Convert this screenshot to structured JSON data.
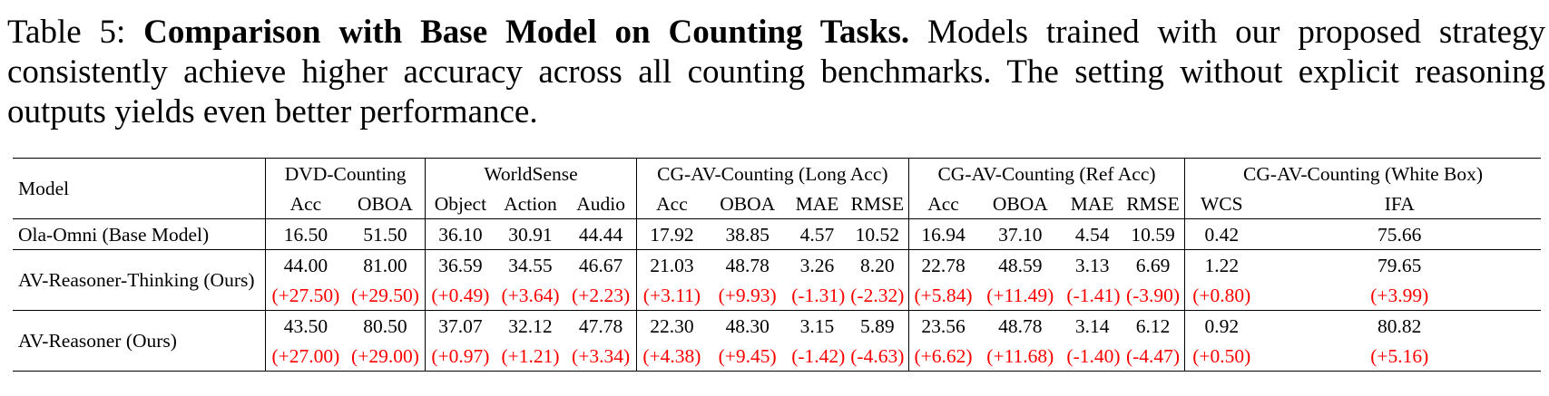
{
  "caption": {
    "prefix": "Table 5: ",
    "bold_title": "Comparison with Base Model on Counting Tasks.",
    "body": " Models trained with our proposed strategy consistently achieve higher accuracy across all counting benchmarks. The setting without explicit reasoning outputs yields even better performance."
  },
  "table": {
    "model_header": "Model",
    "groups": [
      "DVD-Counting",
      "WorldSense",
      "CG-AV-Counting (Long Acc)",
      "CG-AV-Counting (Ref Acc)",
      "CG-AV-Counting (White Box)"
    ],
    "subheaders": [
      "Acc",
      "OBOA",
      "Object",
      "Action",
      "Audio",
      "Acc",
      "OBOA",
      "MAE",
      "RMSE",
      "Acc",
      "OBOA",
      "MAE",
      "RMSE",
      "WCS",
      "IFA"
    ],
    "rows": [
      {
        "model": "Ola-Omni (Base Model)",
        "values": [
          "16.50",
          "51.50",
          "36.10",
          "30.91",
          "44.44",
          "17.92",
          "38.85",
          "4.57",
          "10.52",
          "16.94",
          "37.10",
          "4.54",
          "10.59",
          "0.42",
          "75.66"
        ]
      },
      {
        "model": "AV-Reasoner-Thinking (Ours)",
        "values": [
          "44.00",
          "81.00",
          "36.59",
          "34.55",
          "46.67",
          "21.03",
          "48.78",
          "3.26",
          "8.20",
          "22.78",
          "48.59",
          "3.13",
          "6.69",
          "1.22",
          "79.65"
        ],
        "deltas": [
          "(+27.50)",
          "(+29.50)",
          "(+0.49)",
          "(+3.64)",
          "(+2.23)",
          "(+3.11)",
          "(+9.93)",
          "(-1.31)",
          "(-2.32)",
          "(+5.84)",
          "(+11.49)",
          "(-1.41)",
          "(-3.90)",
          "(+0.80)",
          "(+3.99)"
        ]
      },
      {
        "model": "AV-Reasoner (Ours)",
        "values": [
          "43.50",
          "80.50",
          "37.07",
          "32.12",
          "47.78",
          "22.30",
          "48.30",
          "3.15",
          "5.89",
          "23.56",
          "48.78",
          "3.14",
          "6.12",
          "0.92",
          "80.82"
        ],
        "deltas": [
          "(+27.00)",
          "(+29.00)",
          "(+0.97)",
          "(+1.21)",
          "(+3.34)",
          "(+4.38)",
          "(+9.45)",
          "(-1.42)",
          "(-4.63)",
          "(+6.62)",
          "(+11.68)",
          "(-1.40)",
          "(-4.47)",
          "(+0.50)",
          "(+5.16)"
        ]
      }
    ]
  }
}
